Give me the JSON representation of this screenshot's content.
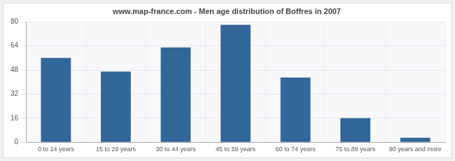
{
  "chart_data": {
    "type": "bar",
    "title": "www.map-france.com - Men age distribution of Boffres in 2007",
    "categories": [
      "0 to 14 years",
      "15 to 29 years",
      "30 to 44 years",
      "45 to 59 years",
      "60 to 74 years",
      "75 to 89 years",
      "90 years and more"
    ],
    "values": [
      56,
      47,
      63,
      78,
      43,
      16,
      3
    ],
    "color": "#336699",
    "ylim": [
      0,
      80
    ],
    "yticks": [
      0,
      16,
      32,
      48,
      64,
      80
    ],
    "grid": true
  }
}
